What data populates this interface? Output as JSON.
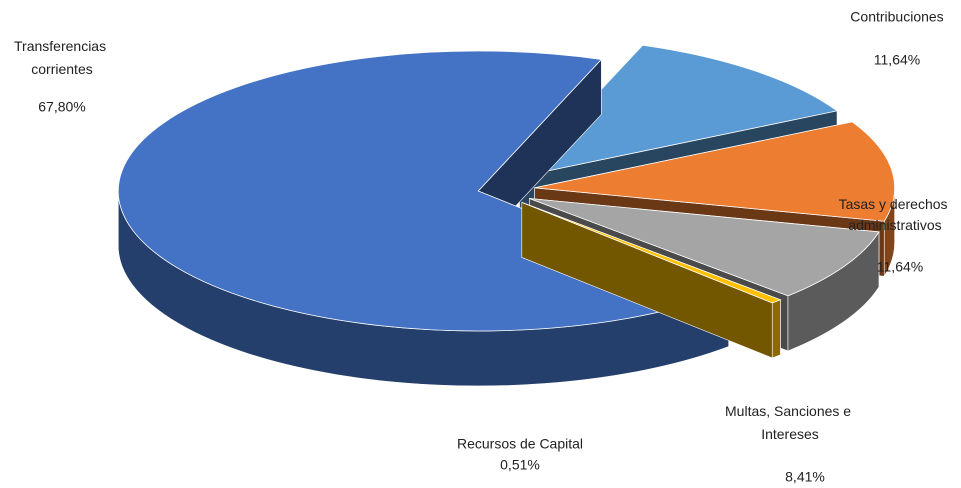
{
  "chart_data": {
    "type": "pie3d",
    "categories": [
      "Contribuciones",
      "Tasas y derechos administrativos",
      "Multas, Sanciones e Intereses",
      "Recursos de Capital",
      "Transferencias corrientes"
    ],
    "values": [
      11.64,
      11.64,
      8.41,
      0.51,
      67.8
    ],
    "value_labels": [
      "11,64%",
      "11,64%",
      "8,41%",
      "0,51%",
      "67,80%"
    ],
    "colors": [
      "#5b9bd5",
      "#ed7d31",
      "#a5a5a5",
      "#ffc000",
      "#4472c4"
    ]
  }
}
